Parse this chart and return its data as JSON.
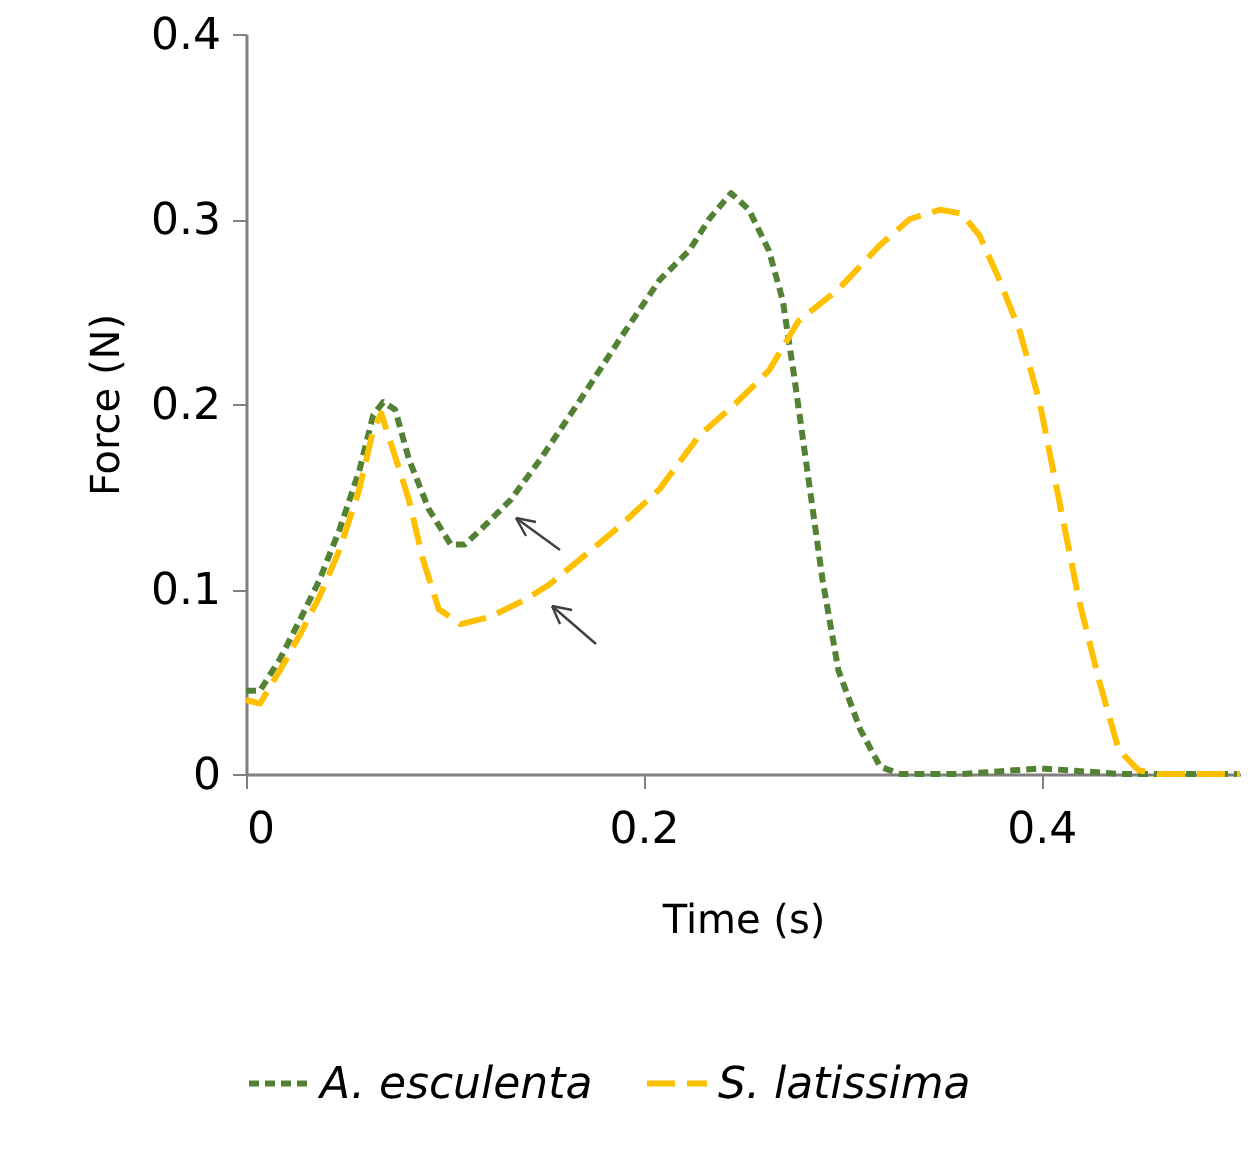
{
  "chart_data": {
    "type": "line",
    "xlabel": "Time (s)",
    "ylabel": "Force (N)",
    "xlim": [
      0,
      0.5
    ],
    "xticks": [
      0,
      0.2,
      0.4
    ],
    "ylim": [
      0,
      0.4
    ],
    "yticks": [
      0,
      0.1,
      0.2,
      0.3,
      0.4
    ],
    "grid": false,
    "legend": "bottom",
    "marker": "none",
    "series": [
      {
        "name": "A. esculenta",
        "color": "#548235",
        "line_style": "dotted",
        "x": [
          0,
          0.007,
          0.017,
          0.027,
          0.037,
          0.047,
          0.057,
          0.064,
          0.069,
          0.075,
          0.082,
          0.092,
          0.103,
          0.11,
          0.118,
          0.133,
          0.148,
          0.168,
          0.188,
          0.208,
          0.223,
          0.233,
          0.244,
          0.253,
          0.263,
          0.27,
          0.276,
          0.283,
          0.29,
          0.298,
          0.309,
          0.319,
          0.329,
          0.36,
          0.4,
          0.44,
          0.5
        ],
        "values": [
          0.045,
          0.045,
          0.062,
          0.083,
          0.105,
          0.132,
          0.164,
          0.194,
          0.201,
          0.197,
          0.17,
          0.143,
          0.124,
          0.124,
          0.132,
          0.148,
          0.17,
          0.202,
          0.235,
          0.267,
          0.283,
          0.3,
          0.314,
          0.305,
          0.283,
          0.256,
          0.213,
          0.159,
          0.105,
          0.056,
          0.024,
          0.004,
          0,
          0,
          0.003,
          0,
          0
        ]
      },
      {
        "name": "S. latissima",
        "color": "#ffc000",
        "line_style": "dashed",
        "x": [
          0,
          0.007,
          0.017,
          0.027,
          0.037,
          0.047,
          0.057,
          0.064,
          0.068,
          0.074,
          0.082,
          0.089,
          0.097,
          0.108,
          0.123,
          0.14,
          0.152,
          0.168,
          0.188,
          0.208,
          0.228,
          0.246,
          0.263,
          0.278,
          0.298,
          0.319,
          0.334,
          0.349,
          0.36,
          0.369,
          0.379,
          0.389,
          0.399,
          0.409,
          0.419,
          0.429,
          0.439,
          0.449,
          0.459,
          0.5
        ],
        "values": [
          0.04,
          0.038,
          0.056,
          0.075,
          0.096,
          0.121,
          0.154,
          0.186,
          0.195,
          0.175,
          0.148,
          0.116,
          0.089,
          0.081,
          0.085,
          0.094,
          0.102,
          0.116,
          0.134,
          0.154,
          0.183,
          0.2,
          0.218,
          0.245,
          0.262,
          0.286,
          0.3,
          0.305,
          0.303,
          0.291,
          0.267,
          0.24,
          0.202,
          0.148,
          0.094,
          0.051,
          0.013,
          0.002,
          0,
          0
        ]
      }
    ]
  }
}
